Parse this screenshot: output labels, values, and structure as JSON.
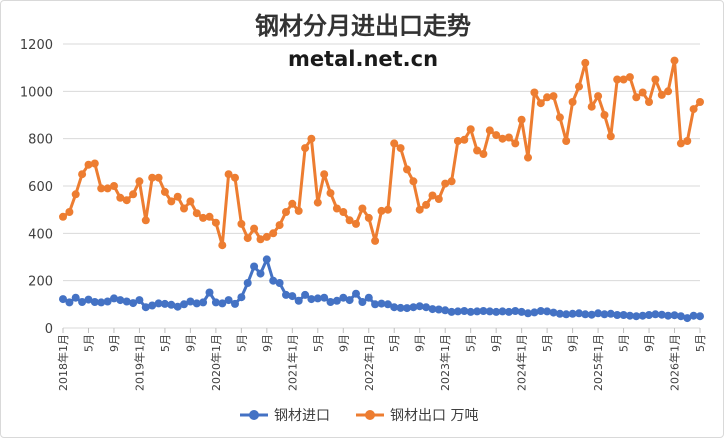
{
  "chart_data": {
    "type": "line",
    "title": "钢材分月进出口走势",
    "subtitle": "metal.net.cn",
    "ylim": [
      0,
      1200
    ],
    "yticks": [
      0,
      200,
      400,
      600,
      800,
      1000,
      1200
    ],
    "grid": "horizontal",
    "legend_position": "bottom",
    "start": "2018-01",
    "x_tick_labels": [
      "2018年1月",
      "5月",
      "9月",
      "2019年1月",
      "5月",
      "9月",
      "2020年1月",
      "5月",
      "9月",
      "2021年1月",
      "5月",
      "9月",
      "2022年1月",
      "5月",
      "9月",
      "2023年1月",
      "5月",
      "9月",
      "2024年1月",
      "5月",
      "9月",
      "2025年1月",
      "5月",
      "9月",
      "2026年1月",
      "5月"
    ],
    "series": [
      {
        "name": "钢材进口",
        "color": "#4472C4",
        "values": [
          122,
          108,
          128,
          110,
          120,
          110,
          108,
          112,
          125,
          118,
          112,
          105,
          118,
          88,
          95,
          104,
          102,
          98,
          90,
          100,
          112,
          104,
          108,
          150,
          108,
          104,
          118,
          102,
          130,
          190,
          260,
          230,
          290,
          200,
          190,
          140,
          135,
          115,
          140,
          122,
          125,
          128,
          110,
          115,
          128,
          118,
          145,
          110,
          128,
          100,
          103,
          100,
          88,
          85,
          84,
          88,
          92,
          88,
          80,
          78,
          75,
          68,
          70,
          72,
          68,
          70,
          72,
          70,
          68,
          70,
          68,
          72,
          68,
          62,
          66,
          72,
          70,
          65,
          60,
          58,
          60,
          62,
          58,
          56,
          62,
          58,
          60,
          55,
          55,
          52,
          50,
          52,
          55,
          58,
          56,
          52,
          54,
          50,
          42,
          52,
          50
        ]
      },
      {
        "name": "钢材出口 万吨",
        "color": "#ED7D31",
        "values": [
          470,
          490,
          565,
          650,
          690,
          695,
          590,
          590,
          600,
          550,
          540,
          565,
          620,
          455,
          635,
          635,
          575,
          535,
          555,
          505,
          535,
          485,
          465,
          470,
          445,
          350,
          650,
          635,
          440,
          380,
          420,
          375,
          385,
          400,
          435,
          490,
          525,
          495,
          760,
          800,
          530,
          650,
          570,
          505,
          490,
          455,
          440,
          505,
          465,
          368,
          495,
          500,
          780,
          760,
          670,
          620,
          500,
          520,
          560,
          545,
          610,
          620,
          790,
          795,
          840,
          750,
          735,
          835,
          815,
          800,
          805,
          780,
          880,
          720,
          995,
          950,
          975,
          980,
          890,
          790,
          955,
          1020,
          1120,
          935,
          980,
          900,
          810,
          1050,
          1050,
          1060,
          975,
          995,
          955,
          1050,
          985,
          1000,
          1130,
          780,
          790,
          925,
          955
        ]
      }
    ]
  }
}
